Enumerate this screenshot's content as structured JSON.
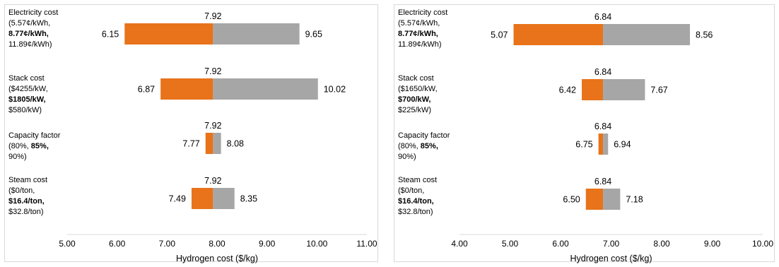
{
  "chart_data": [
    {
      "type": "bar",
      "subtype": "tornado",
      "xlabel": "Hydrogen cost ($/kg)",
      "xlim": [
        5.0,
        11.0
      ],
      "xticks": [
        "5.00",
        "6.00",
        "7.00",
        "8.00",
        "9.00",
        "10.00",
        "11.00"
      ],
      "grid": false,
      "baseline": 7.92,
      "baseline_label": "7.92",
      "colors": {
        "low": "#e8731a",
        "high": "#a6a6a6"
      },
      "categories": [
        {
          "lines": [
            "Electricity cost",
            "(5.57¢/kWh,",
            "8.77¢/kWh,",
            "11.89¢/kWh)"
          ],
          "bold": [
            2
          ],
          "low": 6.15,
          "high": 9.65,
          "low_label": "6.15",
          "high_label": "9.65"
        },
        {
          "lines": [
            "Stack cost",
            "($4255/kW,",
            "$1805/kW,",
            "$580/kW)"
          ],
          "bold": [
            2
          ],
          "low": 6.87,
          "high": 10.02,
          "low_label": "6.87",
          "high_label": "10.02"
        },
        {
          "lines": [
            "Capacity factor",
            "(80%, 85%,",
            "90%)"
          ],
          "bold_spans": [
            [
              1,
              "85%,"
            ]
          ],
          "low": 7.77,
          "high": 8.08,
          "low_label": "7.77",
          "high_label": "8.08"
        },
        {
          "lines": [
            "Steam cost",
            "($0/ton,",
            "$16.4/ton,",
            "$32.8/ton)"
          ],
          "bold": [
            2
          ],
          "low": 7.49,
          "high": 8.35,
          "low_label": "7.49",
          "high_label": "8.35"
        }
      ]
    },
    {
      "type": "bar",
      "subtype": "tornado",
      "xlabel": "Hydrogen cost ($/kg)",
      "xlim": [
        4.0,
        10.0
      ],
      "xticks": [
        "4.00",
        "5.00",
        "6.00",
        "7.00",
        "8.00",
        "9.00",
        "10.00"
      ],
      "grid": false,
      "baseline": 6.84,
      "baseline_label": "6.84",
      "colors": {
        "low": "#e8731a",
        "high": "#a6a6a6"
      },
      "categories": [
        {
          "lines": [
            "Electricity cost",
            "(5.57¢/kWh,",
            "8.77¢/kWh,",
            "11.89¢/kWh)"
          ],
          "bold": [
            2
          ],
          "low": 5.07,
          "high": 8.56,
          "low_label": "5.07",
          "high_label": "8.56"
        },
        {
          "lines": [
            "Stack cost",
            "($1650/kW,",
            "$700/kW,",
            "$225/kW)"
          ],
          "bold": [
            2
          ],
          "low": 6.42,
          "high": 7.67,
          "low_label": "6.42",
          "high_label": "7.67"
        },
        {
          "lines": [
            "Capacity factor",
            "(80%, 85%,",
            "90%)"
          ],
          "bold_spans": [
            [
              1,
              "85%,"
            ]
          ],
          "low": 6.75,
          "high": 6.94,
          "low_label": "6.75",
          "high_label": "6.94"
        },
        {
          "lines": [
            "Steam cost",
            "($0/ton,",
            "$16.4/ton,",
            "$32.8/ton)"
          ],
          "bold": [
            2
          ],
          "low": 6.5,
          "high": 7.18,
          "low_label": "6.50",
          "high_label": "7.18"
        }
      ]
    }
  ]
}
